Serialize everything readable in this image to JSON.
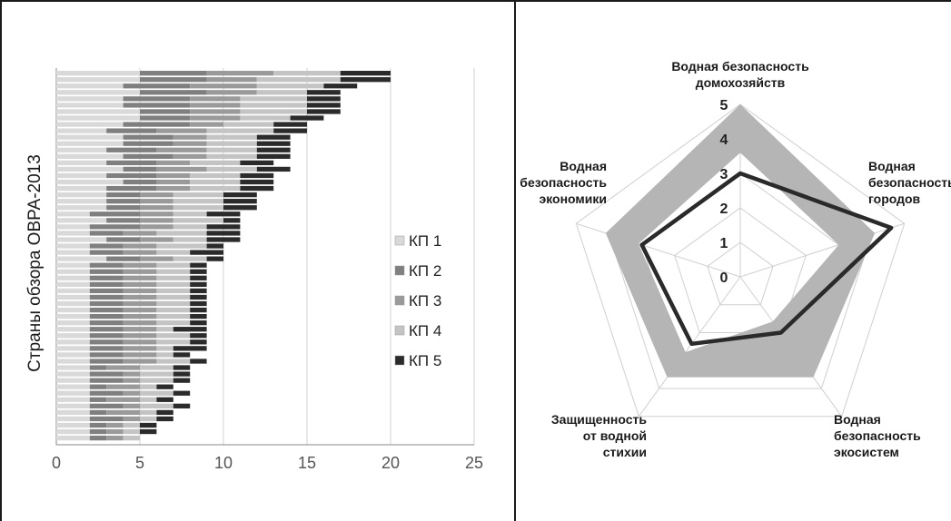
{
  "chart_data": [
    {
      "type": "bar",
      "orientation": "horizontal",
      "stacked": true,
      "ylabel": "Страны обзора ОВРА-2013",
      "xlim": [
        0,
        25
      ],
      "xticks": [
        "0",
        "5",
        "10",
        "15",
        "20",
        "25"
      ],
      "grid": "vertical",
      "legend": "right",
      "colors": [
        "#d9d9d9",
        "#7f7f7f",
        "#9a9a9a",
        "#c4c4c4",
        "#2b2b2b"
      ],
      "series": [
        {
          "name": "КП 1",
          "values": [
            5,
            5,
            4,
            5,
            4,
            4,
            5,
            5,
            4,
            3,
            4,
            4,
            3,
            4,
            3,
            4,
            3,
            4,
            3,
            3,
            3,
            3,
            2,
            3,
            2,
            2,
            3,
            2,
            2,
            3,
            2,
            2,
            2,
            2,
            2,
            2,
            2,
            2,
            2,
            2,
            2,
            2,
            2,
            2,
            2,
            2,
            2,
            2,
            2,
            2,
            2,
            2,
            2,
            2,
            2,
            2,
            2,
            2
          ]
        },
        {
          "name": "КП 2",
          "values": [
            4,
            4,
            4,
            4,
            4,
            4,
            3,
            3,
            4,
            3,
            3,
            3,
            3,
            3,
            3,
            2,
            3,
            2,
            3,
            2,
            2,
            2,
            3,
            2,
            3,
            2,
            2,
            2,
            2,
            2,
            2,
            2,
            2,
            2,
            2,
            2,
            2,
            2,
            2,
            2,
            2,
            2,
            2,
            2,
            2,
            2,
            1,
            2,
            2,
            1,
            2,
            1,
            2,
            1,
            2,
            1,
            1,
            1
          ]
        },
        {
          "name": "КП 3",
          "values": [
            4,
            3,
            4,
            3,
            3,
            3,
            3,
            3,
            2,
            3,
            2,
            2,
            3,
            2,
            2,
            3,
            2,
            2,
            2,
            2,
            2,
            2,
            2,
            2,
            2,
            2,
            2,
            2,
            2,
            2,
            2,
            2,
            2,
            2,
            2,
            2,
            2,
            2,
            2,
            2,
            2,
            2,
            2,
            2,
            2,
            2,
            2,
            1,
            1,
            2,
            1,
            2,
            1,
            2,
            1,
            1,
            1,
            1
          ]
        },
        {
          "name": "КП 4",
          "values": [
            4,
            5,
            4,
            3,
            4,
            4,
            4,
            3,
            3,
            4,
            3,
            3,
            3,
            3,
            3,
            3,
            3,
            3,
            3,
            3,
            3,
            3,
            2,
            3,
            2,
            3,
            2,
            3,
            2,
            2,
            2,
            2,
            2,
            2,
            2,
            2,
            2,
            2,
            2,
            2,
            1,
            2,
            2,
            1,
            1,
            2,
            2,
            2,
            2,
            1,
            2,
            1,
            2,
            1,
            1,
            1,
            1,
            1
          ]
        },
        {
          "name": "КП 5",
          "values": [
            3,
            3,
            2,
            2,
            2,
            2,
            2,
            2,
            2,
            2,
            2,
            2,
            2,
            2,
            2,
            2,
            2,
            2,
            2,
            2,
            2,
            2,
            2,
            1,
            2,
            2,
            2,
            1,
            2,
            1,
            1,
            1,
            1,
            1,
            1,
            1,
            1,
            1,
            1,
            1,
            2,
            1,
            1,
            2,
            1,
            1,
            1,
            1,
            1,
            1,
            1,
            1,
            1,
            1,
            1,
            1,
            1,
            0
          ]
        }
      ]
    },
    {
      "type": "radar",
      "categories": [
        "Водная безопасность домохозяйств",
        "Водная безопасность городов",
        "Водная безопасность экосистем",
        "Защищенность от водной стихии",
        "Водная безопасность экономики"
      ],
      "rlim": [
        0,
        5
      ],
      "rticks": [
        "0",
        "1",
        "2",
        "3",
        "4",
        "5"
      ],
      "band_max": [
        5,
        4.1,
        3.6,
        3.6,
        4.1
      ],
      "band_min": [
        3.6,
        3,
        1.6,
        2.7,
        3.1
      ],
      "series": [
        {
          "values": [
            3,
            4.6,
            2,
            2.4,
            3
          ]
        }
      ],
      "colors": {
        "band": "#b5b5b5",
        "line": "#2a2a2a"
      }
    }
  ]
}
